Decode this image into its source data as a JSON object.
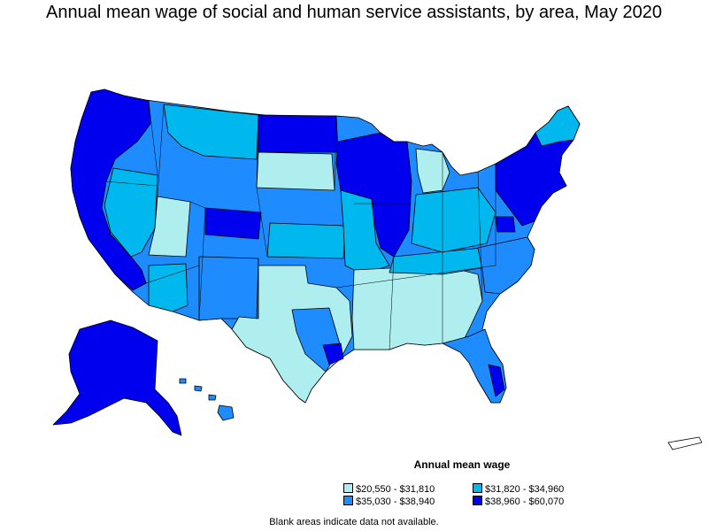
{
  "title": "Annual mean wage of social and human service assistants, by area, May 2020",
  "legend": {
    "title": "Annual mean wage",
    "items": [
      {
        "label": "$20,550 - $31,810",
        "color": "#aeeeee"
      },
      {
        "label": "$31,820 - $34,960",
        "color": "#00b8ee"
      },
      {
        "label": "$35,030 - $38,940",
        "color": "#1e8cff"
      },
      {
        "label": "$38,960 - $60,070",
        "color": "#0000ee"
      }
    ]
  },
  "footnote": "Blank areas indicate data not available.",
  "colors": {
    "tier1": "#aeeeee",
    "tier2": "#00b8ee",
    "tier3": "#1e8cff",
    "tier4": "#0000ee",
    "border": "#000000"
  }
}
